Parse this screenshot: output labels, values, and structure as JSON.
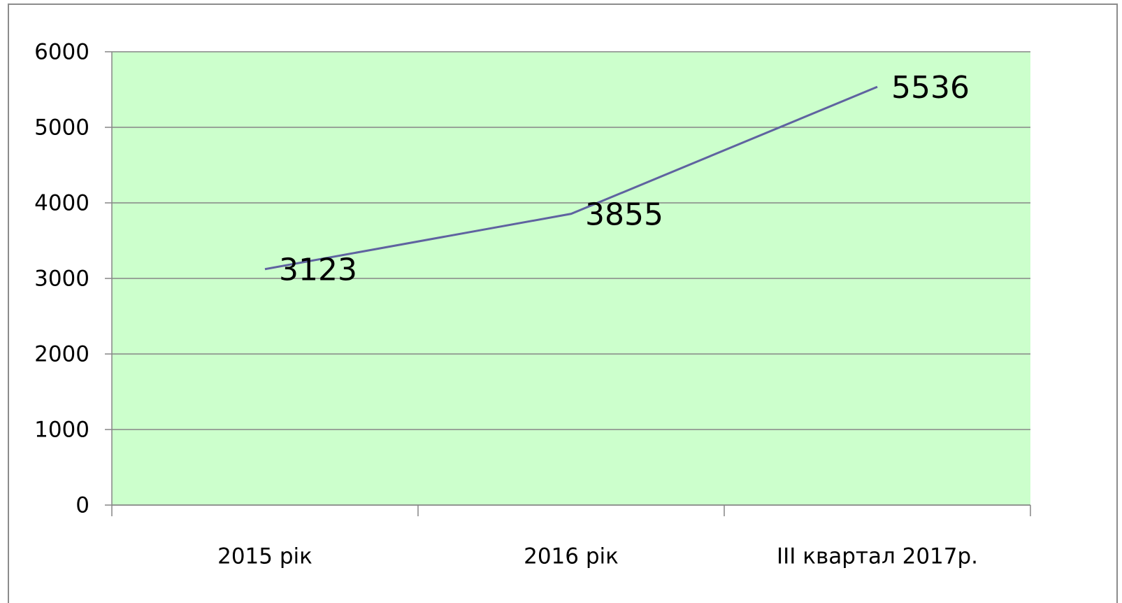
{
  "chart_data": {
    "type": "line",
    "categories": [
      "2015 рік",
      "2016 рік",
      "III квартал 2017р."
    ],
    "series": [
      {
        "name": "",
        "color": "#5f63a0",
        "values": [
          3123,
          3855,
          5536
        ]
      }
    ],
    "ylim": [
      0,
      6000
    ],
    "yticks": [
      0,
      1000,
      2000,
      3000,
      4000,
      5000,
      6000
    ],
    "grid": true,
    "plot_background": "#ccffcc"
  }
}
